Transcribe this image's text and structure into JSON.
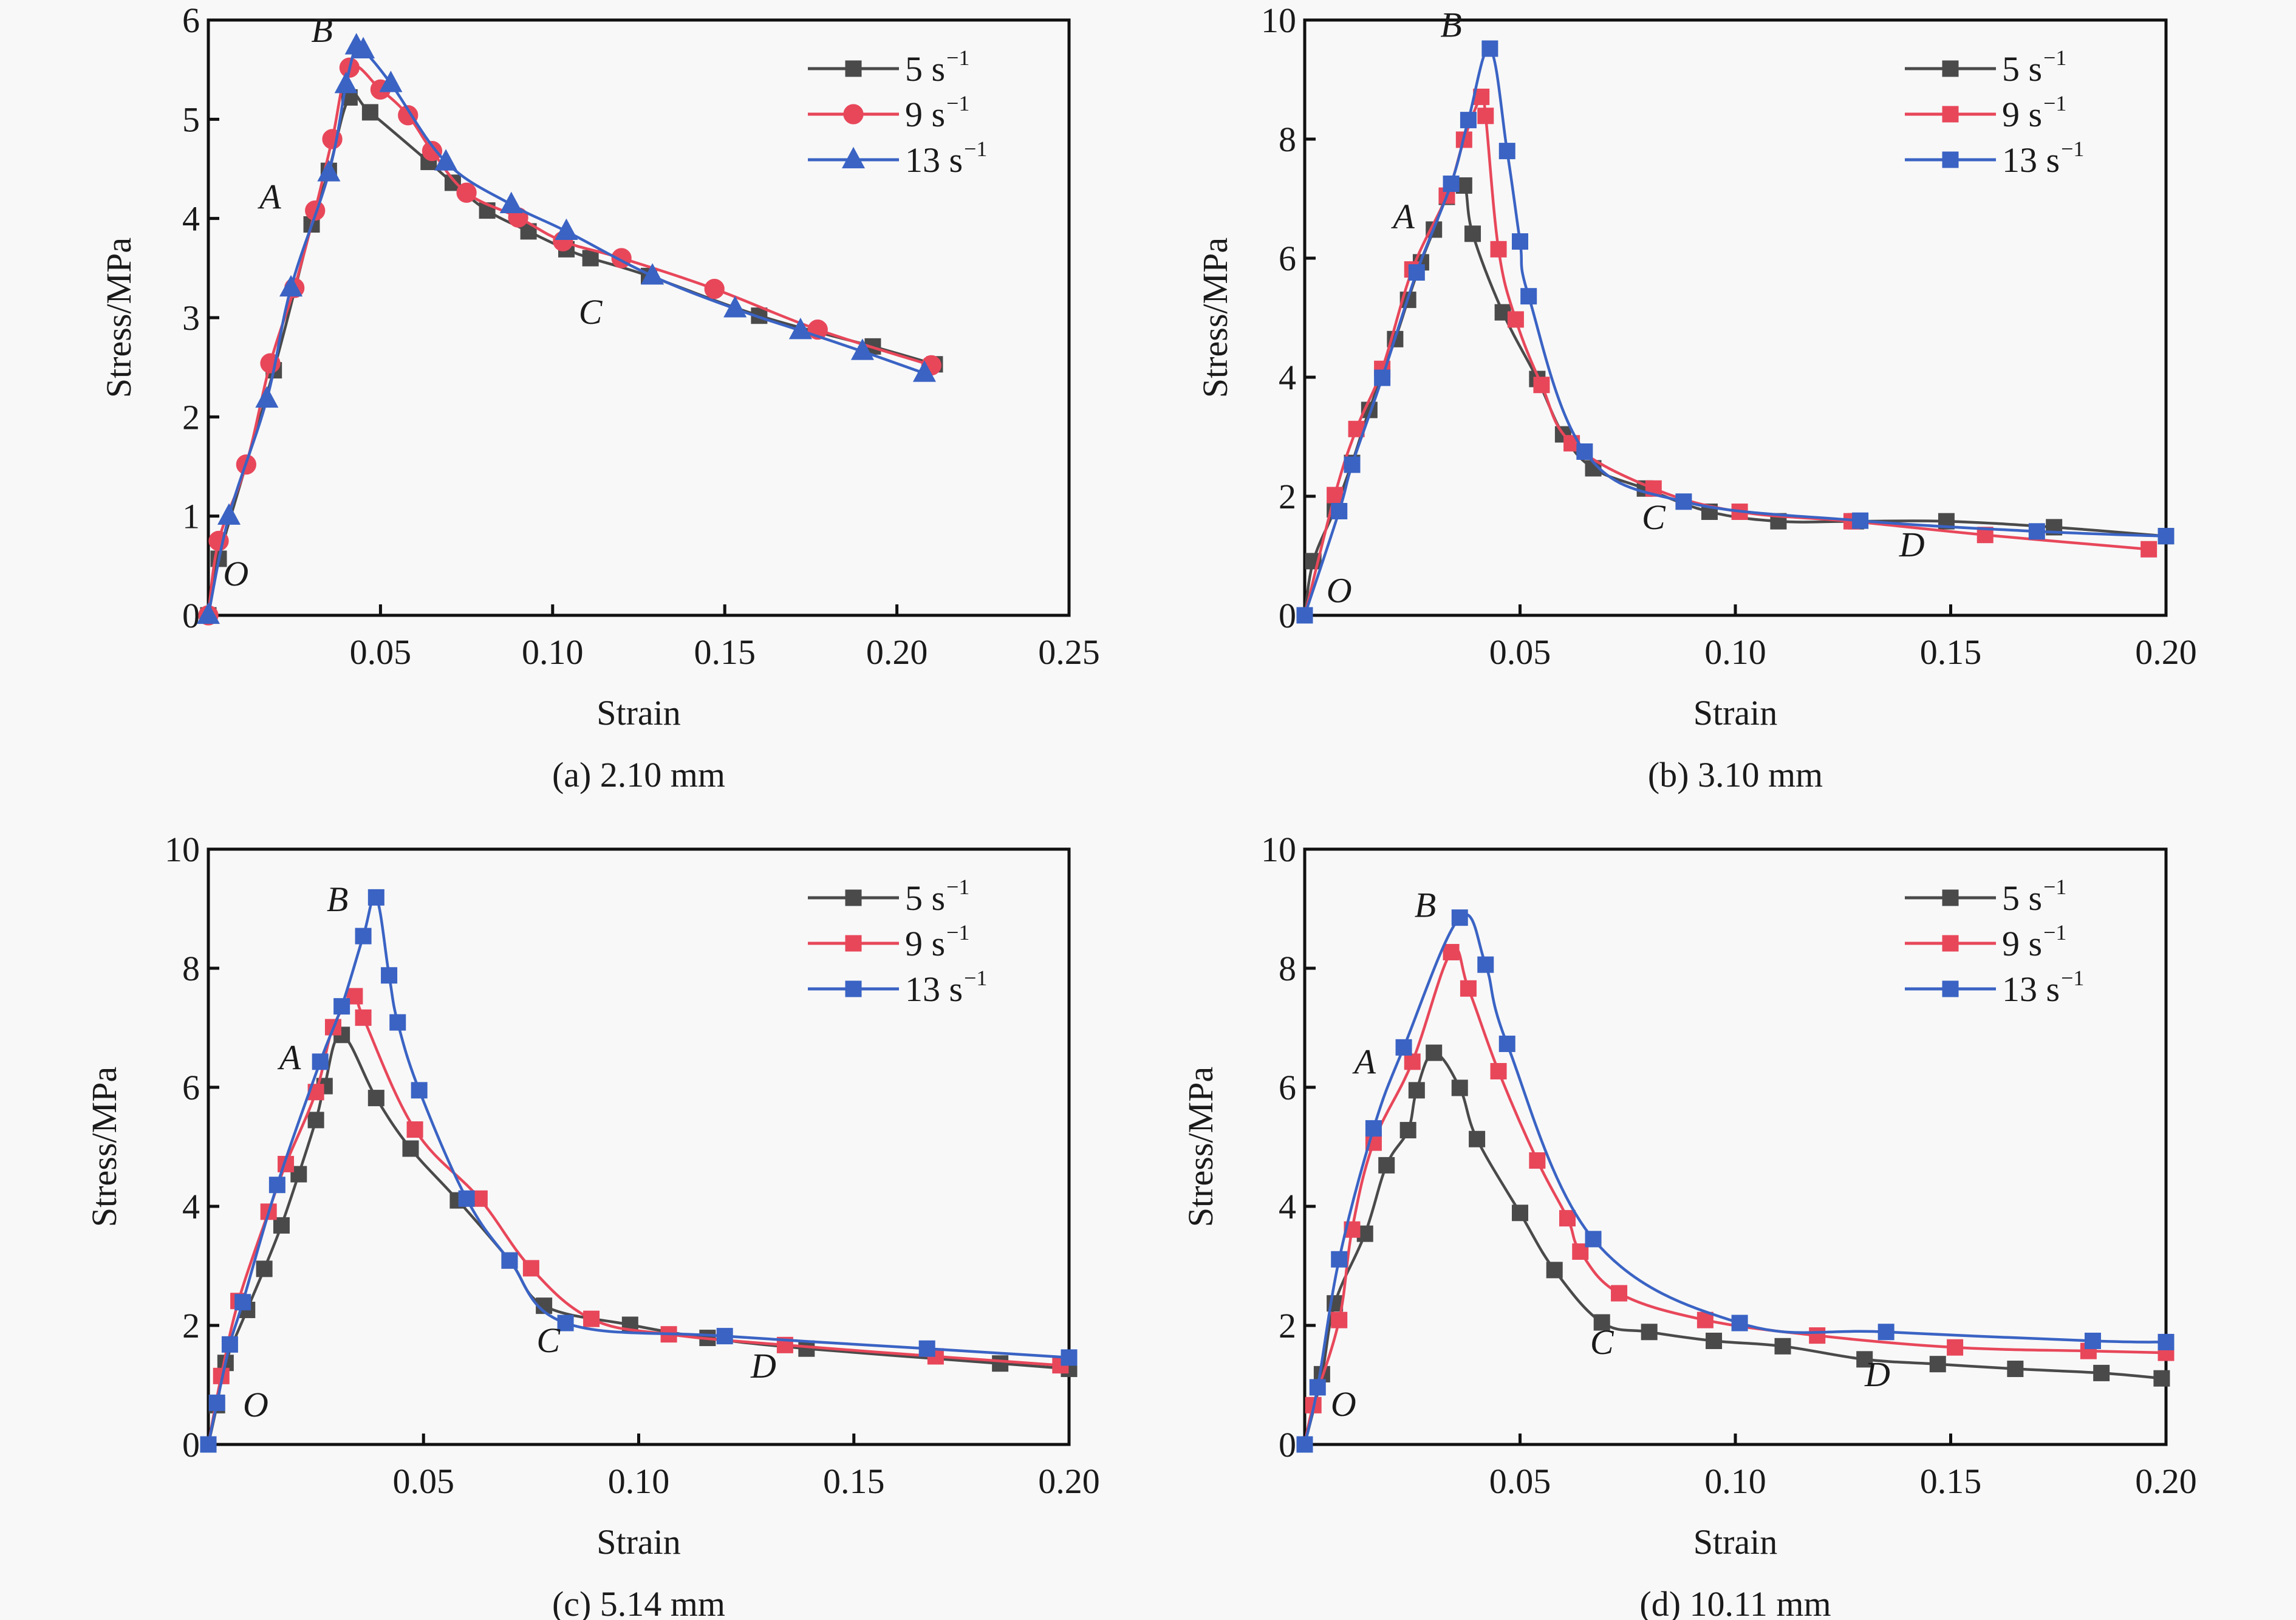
{
  "chart_data": [
    {
      "id": "a",
      "type": "line",
      "caption": "(a) 2.10 mm",
      "xlabel": "Strain",
      "ylabel": "Stress/MPa",
      "xlim": [
        0,
        0.25
      ],
      "ylim": [
        0,
        6
      ],
      "xticks": [
        0.05,
        0.1,
        0.15,
        0.2,
        0.25
      ],
      "xtick_labels": [
        "0.05",
        "0.10",
        "0.15",
        "0.20",
        "0.25"
      ],
      "yticks": [
        0,
        1,
        2,
        3,
        4,
        5,
        6
      ],
      "ytick_labels": [
        "0",
        "1",
        "2",
        "3",
        "4",
        "5",
        "6"
      ],
      "grid": false,
      "legend_position": "top-right",
      "series": [
        {
          "name": "5 s⁻¹",
          "base": "5 s",
          "sup": "−1",
          "color": "#4a4a4a",
          "marker": "square",
          "x": [
            0,
            0.003,
            0.019,
            0.03,
            0.035,
            0.041,
            0.047,
            0.064,
            0.071,
            0.081,
            0.093,
            0.104,
            0.111,
            0.128,
            0.16,
            0.193,
            0.211
          ],
          "y": [
            0,
            0.57,
            2.47,
            3.94,
            4.48,
            5.22,
            5.07,
            4.57,
            4.36,
            4.08,
            3.87,
            3.69,
            3.6,
            3.42,
            3.02,
            2.71,
            2.53
          ]
        },
        {
          "name": "9 s⁻¹",
          "base": "9 s",
          "sup": "−1",
          "color": "#e8475a",
          "marker": "circle",
          "x": [
            0,
            0.003,
            0.011,
            0.018,
            0.025,
            0.031,
            0.036,
            0.041,
            0.05,
            0.058,
            0.065,
            0.075,
            0.09,
            0.103,
            0.12,
            0.147,
            0.177,
            0.21
          ],
          "y": [
            0,
            0.75,
            1.52,
            2.54,
            3.3,
            4.08,
            4.8,
            5.52,
            5.3,
            5.04,
            4.68,
            4.26,
            4.01,
            3.77,
            3.6,
            3.29,
            2.88,
            2.52
          ]
        },
        {
          "name": "13 s⁻¹",
          "base": "13 s",
          "sup": "−1",
          "color": "#3a63c4",
          "marker": "triangle",
          "x": [
            0,
            0.006,
            0.017,
            0.024,
            0.035,
            0.04,
            0.043,
            0.045,
            0.053,
            0.069,
            0.088,
            0.104,
            0.129,
            0.153,
            0.172,
            0.19,
            0.208
          ],
          "y": [
            0,
            1.0,
            2.18,
            3.3,
            4.46,
            5.35,
            5.74,
            5.7,
            5.36,
            4.57,
            4.14,
            3.87,
            3.42,
            3.09,
            2.87,
            2.66,
            2.44
          ]
        }
      ],
      "annotations": [
        {
          "text": "O",
          "x": 0.008,
          "y": 0.3
        },
        {
          "text": "A",
          "x": 0.018,
          "y": 4.1
        },
        {
          "text": "B",
          "x": 0.033,
          "y": 5.78
        },
        {
          "text": "C",
          "x": 0.111,
          "y": 2.94
        }
      ]
    },
    {
      "id": "b",
      "type": "line",
      "caption": "(b) 3.10 mm",
      "xlabel": "Strain",
      "ylabel": "Stress/MPa",
      "xlim": [
        0,
        0.2
      ],
      "ylim": [
        0,
        10
      ],
      "xticks": [
        0.05,
        0.1,
        0.15,
        0.2
      ],
      "xtick_labels": [
        "0.05",
        "0.10",
        "0.15",
        "0.20"
      ],
      "yticks": [
        0,
        2,
        4,
        6,
        8,
        10
      ],
      "ytick_labels": [
        "0",
        "2",
        "4",
        "6",
        "8",
        "10"
      ],
      "grid": false,
      "legend_position": "top-right",
      "series": [
        {
          "name": "5 s⁻¹",
          "base": "5 s",
          "sup": "−1",
          "color": "#4a4a4a",
          "marker": "square",
          "x": [
            0,
            0.002,
            0.007,
            0.011,
            0.015,
            0.021,
            0.024,
            0.027,
            0.03,
            0.033,
            0.037,
            0.039,
            0.046,
            0.054,
            0.06,
            0.067,
            0.079,
            0.094,
            0.11,
            0.128,
            0.149,
            0.174,
            0.2
          ],
          "y": [
            0,
            0.91,
            1.78,
            2.56,
            3.45,
            4.64,
            5.3,
            5.93,
            6.48,
            7.03,
            7.22,
            6.41,
            5.09,
            3.97,
            3.04,
            2.47,
            2.13,
            1.74,
            1.58,
            1.58,
            1.58,
            1.48,
            1.33
          ]
        },
        {
          "name": "9 s⁻¹",
          "base": "9 s",
          "sup": "−1",
          "color": "#e8475a",
          "marker": "square",
          "x": [
            0,
            0.007,
            0.012,
            0.018,
            0.025,
            0.033,
            0.037,
            0.041,
            0.042,
            0.045,
            0.049,
            0.055,
            0.062,
            0.081,
            0.101,
            0.127,
            0.158,
            0.196
          ],
          "y": [
            0,
            2.02,
            3.13,
            4.14,
            5.81,
            7.05,
            7.99,
            8.71,
            8.39,
            6.15,
            4.97,
            3.87,
            2.89,
            2.13,
            1.74,
            1.58,
            1.35,
            1.11
          ]
        },
        {
          "name": "13 s⁻¹",
          "base": "13 s",
          "sup": "−1",
          "color": "#3a63c4",
          "marker": "square",
          "x": [
            0,
            0.008,
            0.011,
            0.018,
            0.026,
            0.034,
            0.038,
            0.043,
            0.047,
            0.05,
            0.052,
            0.065,
            0.088,
            0.129,
            0.17,
            0.2
          ],
          "y": [
            0,
            1.75,
            2.53,
            3.99,
            5.76,
            7.25,
            8.32,
            9.52,
            7.8,
            6.28,
            5.36,
            2.75,
            1.91,
            1.59,
            1.41,
            1.33
          ]
        }
      ],
      "annotations": [
        {
          "text": "O",
          "x": 0.008,
          "y": 0.22
        },
        {
          "text": "A",
          "x": 0.023,
          "y": 6.5
        },
        {
          "text": "B",
          "x": 0.034,
          "y": 9.72
        },
        {
          "text": "C",
          "x": 0.081,
          "y": 1.45
        },
        {
          "text": "D",
          "x": 0.141,
          "y": 0.99
        }
      ]
    },
    {
      "id": "c",
      "type": "line",
      "caption": "(c) 5.14 mm",
      "xlabel": "Strain",
      "ylabel": "Stress/MPa",
      "xlim": [
        0,
        0.2
      ],
      "ylim": [
        0,
        10
      ],
      "xticks": [
        0.05,
        0.1,
        0.15,
        0.2
      ],
      "xtick_labels": [
        "0.05",
        "0.10",
        "0.15",
        "0.20"
      ],
      "yticks": [
        0,
        2,
        4,
        6,
        8,
        10
      ],
      "ytick_labels": [
        "0",
        "2",
        "4",
        "6",
        "8",
        "10"
      ],
      "grid": false,
      "legend_position": "top-right",
      "series": [
        {
          "name": "5 s⁻¹",
          "base": "5 s",
          "sup": "−1",
          "color": "#4a4a4a",
          "marker": "square",
          "x": [
            0,
            0.002,
            0.004,
            0.009,
            0.013,
            0.017,
            0.021,
            0.025,
            0.027,
            0.031,
            0.039,
            0.047,
            0.058,
            0.07,
            0.078,
            0.098,
            0.116,
            0.139,
            0.184,
            0.2
          ],
          "y": [
            0,
            0.66,
            1.37,
            2.26,
            2.95,
            3.68,
            4.54,
            5.45,
            6.02,
            6.88,
            5.82,
            4.97,
            4.1,
            3.09,
            2.33,
            2.01,
            1.79,
            1.61,
            1.36,
            1.27
          ]
        },
        {
          "name": "9 s⁻¹",
          "base": "9 s",
          "sup": "−1",
          "color": "#e8475a",
          "marker": "square",
          "x": [
            0,
            0.003,
            0.007,
            0.014,
            0.018,
            0.025,
            0.029,
            0.034,
            0.036,
            0.048,
            0.063,
            0.075,
            0.089,
            0.107,
            0.134,
            0.169,
            0.198
          ],
          "y": [
            0,
            1.15,
            2.41,
            3.91,
            4.71,
            5.92,
            7.01,
            7.53,
            7.17,
            5.29,
            4.13,
            2.96,
            2.11,
            1.85,
            1.67,
            1.48,
            1.33
          ]
        },
        {
          "name": "13 s⁻¹",
          "base": "13 s",
          "sup": "−1",
          "color": "#3a63c4",
          "marker": "square",
          "x": [
            0,
            0.002,
            0.005,
            0.008,
            0.016,
            0.026,
            0.031,
            0.036,
            0.039,
            0.042,
            0.044,
            0.049,
            0.06,
            0.07,
            0.083,
            0.12,
            0.167,
            0.2
          ],
          "y": [
            0,
            0.7,
            1.68,
            2.39,
            4.36,
            6.43,
            7.36,
            8.54,
            9.19,
            7.88,
            7.09,
            5.95,
            4.13,
            3.09,
            2.04,
            1.82,
            1.61,
            1.46
          ]
        }
      ],
      "annotations": [
        {
          "text": "O",
          "x": 0.011,
          "y": 0.47
        },
        {
          "text": "A",
          "x": 0.019,
          "y": 6.3
        },
        {
          "text": "B",
          "x": 0.03,
          "y": 8.96
        },
        {
          "text": "C",
          "x": 0.079,
          "y": 1.55
        },
        {
          "text": "D",
          "x": 0.129,
          "y": 1.12
        }
      ]
    },
    {
      "id": "d",
      "type": "line",
      "caption": "(d) 10.11 mm",
      "xlabel": "Strain",
      "ylabel": "Stress/MPa",
      "xlim": [
        0,
        0.2
      ],
      "ylim": [
        0,
        10
      ],
      "xticks": [
        0.05,
        0.1,
        0.15,
        0.2
      ],
      "xtick_labels": [
        "0.05",
        "0.10",
        "0.15",
        "0.20"
      ],
      "yticks": [
        0,
        2,
        4,
        6,
        8,
        10
      ],
      "ytick_labels": [
        "0",
        "2",
        "4",
        "6",
        "8",
        "10"
      ],
      "grid": false,
      "legend_position": "top-right",
      "series": [
        {
          "name": "5 s⁻¹",
          "base": "5 s",
          "sup": "−1",
          "color": "#4a4a4a",
          "marker": "square",
          "x": [
            0,
            0.004,
            0.007,
            0.014,
            0.019,
            0.024,
            0.026,
            0.03,
            0.036,
            0.04,
            0.05,
            0.058,
            0.069,
            0.08,
            0.095,
            0.111,
            0.13,
            0.147,
            0.165,
            0.185,
            0.199
          ],
          "y": [
            0,
            1.18,
            2.37,
            3.54,
            4.69,
            5.28,
            5.95,
            6.58,
            5.99,
            5.13,
            3.89,
            2.93,
            2.05,
            1.89,
            1.74,
            1.65,
            1.43,
            1.35,
            1.27,
            1.2,
            1.11
          ]
        },
        {
          "name": "9 s⁻¹",
          "base": "9 s",
          "sup": "−1",
          "color": "#e8475a",
          "marker": "square",
          "x": [
            0,
            0.002,
            0.008,
            0.011,
            0.016,
            0.025,
            0.034,
            0.038,
            0.045,
            0.054,
            0.061,
            0.064,
            0.073,
            0.093,
            0.119,
            0.151,
            0.182,
            0.2
          ],
          "y": [
            0,
            0.66,
            2.09,
            3.61,
            5.07,
            6.43,
            8.27,
            7.66,
            6.27,
            4.77,
            3.8,
            3.24,
            2.54,
            2.09,
            1.83,
            1.63,
            1.57,
            1.54
          ]
        },
        {
          "name": "13 s⁻¹",
          "base": "13 s",
          "sup": "−1",
          "color": "#3a63c4",
          "marker": "square",
          "x": [
            0,
            0.003,
            0.008,
            0.016,
            0.023,
            0.036,
            0.042,
            0.047,
            0.067,
            0.101,
            0.135,
            0.183,
            0.2
          ],
          "y": [
            0,
            0.96,
            3.11,
            5.31,
            6.67,
            8.85,
            8.06,
            6.73,
            3.45,
            2.04,
            1.89,
            1.74,
            1.72
          ]
        }
      ],
      "annotations": [
        {
          "text": "O",
          "x": 0.009,
          "y": 0.48
        },
        {
          "text": "A",
          "x": 0.014,
          "y": 6.23
        },
        {
          "text": "B",
          "x": 0.028,
          "y": 8.86
        },
        {
          "text": "C",
          "x": 0.069,
          "y": 1.52
        },
        {
          "text": "D",
          "x": 0.133,
          "y": 0.98
        }
      ]
    }
  ]
}
